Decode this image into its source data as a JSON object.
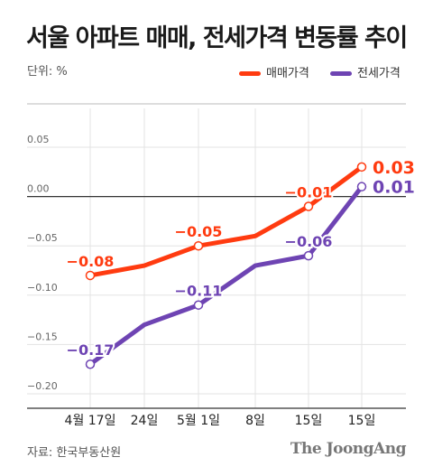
{
  "title": "서울 아파트 매매, 전세가격 변동률 추이",
  "unit": "단위: %",
  "source": "자료: 한국부동산원",
  "brand": "The JoongAng",
  "colors": {
    "sale": "#ff3b10",
    "jeonse": "#6e44b3"
  },
  "chart_data": {
    "type": "line",
    "categories": [
      "4월 17일",
      "24일",
      "5월 1일",
      "8일",
      "15일",
      "15일"
    ],
    "ylim": [
      -0.2,
      0.05
    ],
    "yticks": [
      0.05,
      0.0,
      -0.05,
      -0.1,
      -0.15,
      -0.2
    ],
    "ytick_labels": [
      "0.05",
      "0.00",
      "−0.05",
      "−0.10",
      "−0.15",
      "−0.20"
    ],
    "grid": true,
    "legend_position": "top-right",
    "series": [
      {
        "name": "매매가격",
        "values": [
          -0.08,
          -0.07,
          -0.05,
          -0.04,
          -0.01,
          0.03
        ],
        "labels": [
          "−0.08",
          "",
          "−0.05",
          "",
          "−0.01",
          "0.03"
        ]
      },
      {
        "name": "전세가격",
        "values": [
          -0.17,
          -0.13,
          -0.11,
          -0.07,
          -0.06,
          0.01
        ],
        "labels": [
          "−0.17",
          "",
          "−0.11",
          "",
          "−0.06",
          "0.01"
        ]
      }
    ]
  }
}
